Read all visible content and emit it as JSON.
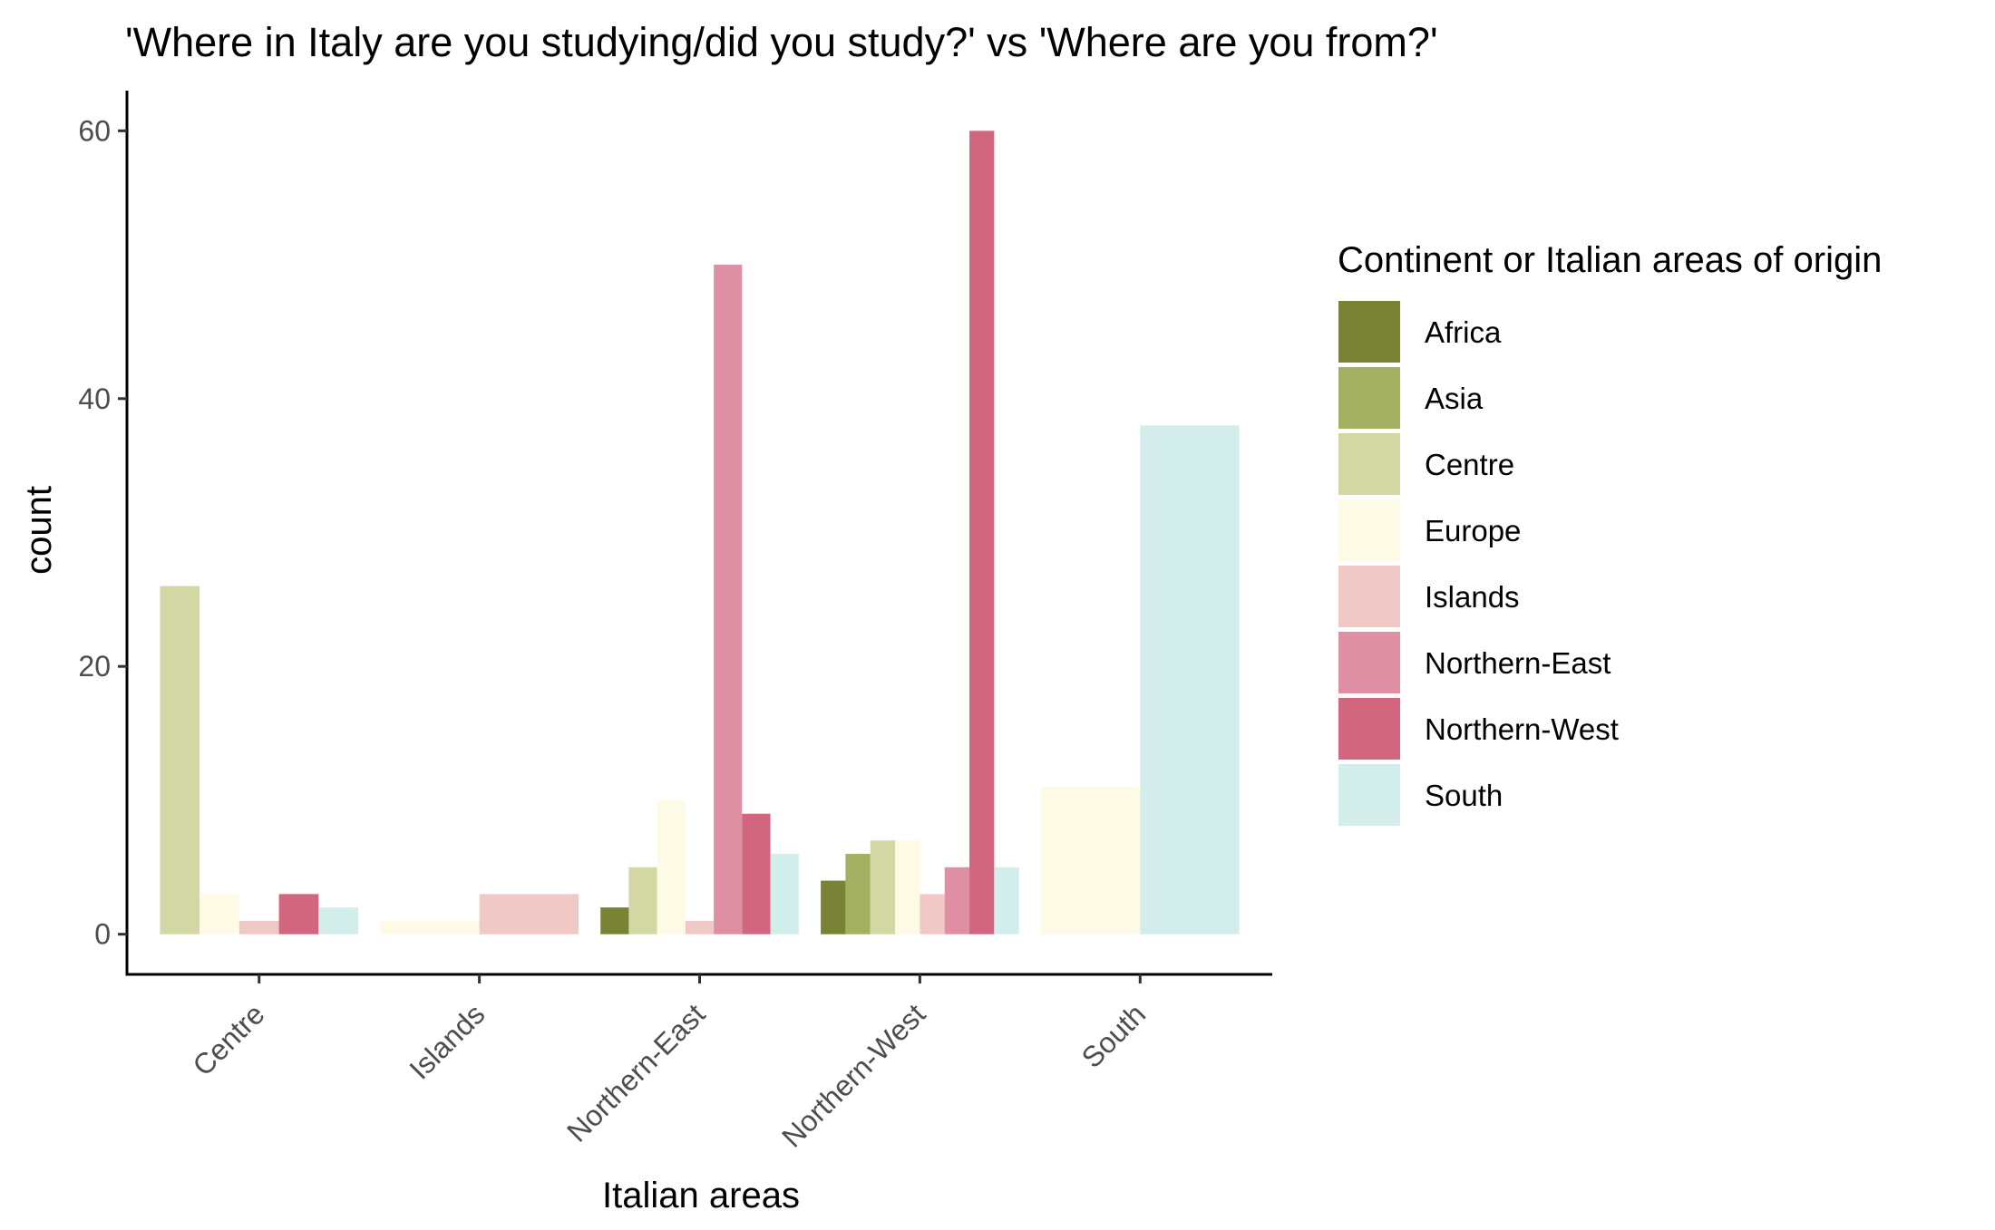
{
  "chart_data": {
    "type": "bar",
    "title": "'Where in Italy are you studying/did you study?' vs 'Where are you from?'",
    "xlabel": "Italian areas",
    "ylabel": "count",
    "ylim": [
      -3,
      63
    ],
    "yticks": [
      0,
      20,
      40,
      60
    ],
    "grid": false,
    "legend_position": "right",
    "legend_title": "Continent or Italian areas of origin",
    "categories": [
      "Centre",
      "Islands",
      "Northern-East",
      "Northern-West",
      "South"
    ],
    "series": [
      {
        "name": "Africa",
        "color": "#7a8335",
        "values": [
          null,
          null,
          2,
          4,
          null
        ]
      },
      {
        "name": "Asia",
        "color": "#a3b061",
        "values": [
          null,
          null,
          null,
          6,
          null
        ]
      },
      {
        "name": "Centre",
        "color": "#d2d7a4",
        "values": [
          26,
          null,
          5,
          7,
          null
        ]
      },
      {
        "name": "Europe",
        "color": "#fdfbe6",
        "values": [
          3,
          1,
          10,
          7,
          11
        ]
      },
      {
        "name": "Islands",
        "color": "#f0c8c5",
        "values": [
          1,
          3,
          1,
          3,
          null
        ]
      },
      {
        "name": "Northern-East",
        "color": "#de8fa3",
        "values": [
          null,
          null,
          50,
          5,
          null
        ]
      },
      {
        "name": "Northern-West",
        "color": "#d3667f",
        "values": [
          3,
          null,
          9,
          60,
          null
        ]
      },
      {
        "name": "South",
        "color": "#d3edeb",
        "values": [
          2,
          null,
          6,
          5,
          38
        ]
      }
    ]
  }
}
